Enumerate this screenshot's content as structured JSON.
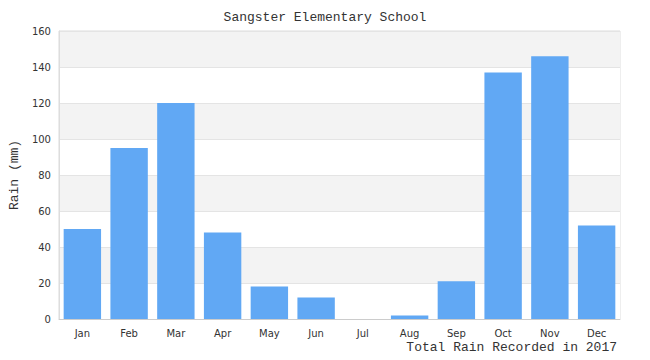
{
  "chart_data": {
    "type": "bar",
    "title": "Sangster Elementary School",
    "x_label": "Total Rain Recorded in 2017",
    "y_label": "Rain (mm)",
    "categories": [
      "Jan",
      "Feb",
      "Mar",
      "Apr",
      "May",
      "Jun",
      "Jul",
      "Aug",
      "Sep",
      "Oct",
      "Nov",
      "Dec"
    ],
    "values": [
      50,
      95,
      120,
      48,
      18,
      12,
      0,
      2,
      21,
      137,
      146,
      52
    ],
    "color": "#61a8f4",
    "ylim": [
      0,
      160
    ],
    "yticks": [
      0,
      20,
      40,
      60,
      80,
      100,
      120,
      140,
      160
    ],
    "grid": true
  }
}
